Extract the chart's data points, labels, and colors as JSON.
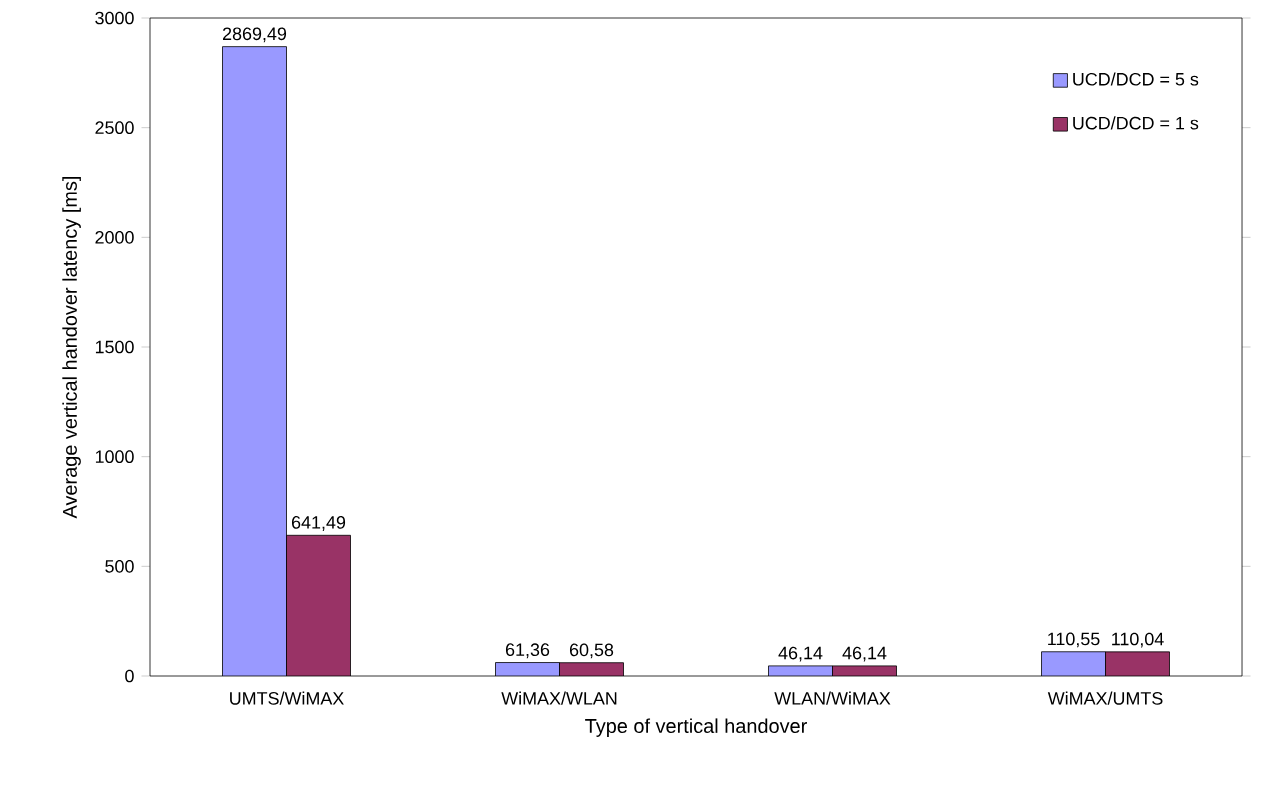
{
  "chart_data": {
    "type": "bar",
    "xlabel": "Type of vertical handover",
    "ylabel": "Average vertical handover latency [ms]",
    "categories": [
      "UMTS/WiMAX",
      "WiMAX/WLAN",
      "WLAN/WiMAX",
      "WiMAX/UMTS"
    ],
    "series": [
      {
        "name": "UCD/DCD = 5 s",
        "color": "#9999ff",
        "values": [
          2869.49,
          61.36,
          46.14,
          110.55
        ],
        "value_labels": [
          "2869,49",
          "61,36",
          "46,14",
          "110,55"
        ]
      },
      {
        "name": "UCD/DCD = 1 s",
        "color": "#993366",
        "values": [
          641.49,
          60.58,
          46.14,
          110.04
        ],
        "value_labels": [
          "641,49",
          "60,58",
          "46,14",
          "110,04"
        ]
      }
    ],
    "ylim": [
      0,
      3000
    ],
    "yticks": [
      0,
      500,
      1000,
      1500,
      2000,
      2500,
      3000
    ],
    "grid": false,
    "legend": "top right"
  }
}
